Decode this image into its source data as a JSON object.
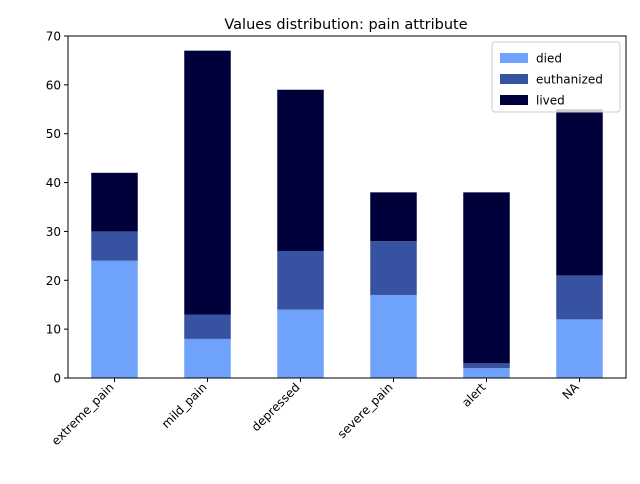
{
  "chart_data": {
    "type": "bar",
    "stacked": true,
    "title": "Values distribution: pain attribute",
    "xlabel": "",
    "ylabel": "",
    "categories": [
      "extreme_pain",
      "mild_pain",
      "depressed",
      "severe_pain",
      "alert",
      "NA"
    ],
    "series": [
      {
        "name": "died",
        "color": "#6fa3fb",
        "values": [
          24,
          8,
          14,
          17,
          2,
          12
        ]
      },
      {
        "name": "euthanized",
        "color": "#3652a0",
        "values": [
          6,
          5,
          12,
          11,
          1,
          9
        ]
      },
      {
        "name": "lived",
        "color": "#00003a",
        "values": [
          12,
          54,
          33,
          10,
          35,
          34
        ]
      }
    ],
    "ylim": [
      0,
      70
    ],
    "yticks": [
      0,
      10,
      20,
      30,
      40,
      50,
      60,
      70
    ],
    "grid": false,
    "legend_position": "top-right"
  }
}
